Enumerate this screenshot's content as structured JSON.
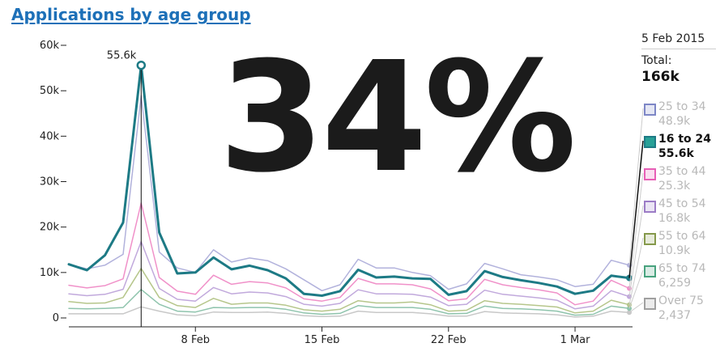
{
  "title": "Applications by age group",
  "big_stat": "34%",
  "panel": {
    "date": "5 Feb 2015",
    "total_label": "Total:",
    "total_value": "166k"
  },
  "legend": [
    {
      "name": "25 to 34",
      "value": "48.9k",
      "color": "#7d86c6",
      "active": false
    },
    {
      "name": "16 to 24",
      "value": "55.6k",
      "color": "#28a197",
      "active": true
    },
    {
      "name": "35 to 44",
      "value": "25.3k",
      "color": "#e75fb6",
      "active": false
    },
    {
      "name": "45 to 54",
      "value": "16.8k",
      "color": "#9c7cc6",
      "active": false
    },
    {
      "name": "55 to 64",
      "value": "10.9k",
      "color": "#85994b",
      "active": false
    },
    {
      "name": "65 to 74",
      "value": "6,259",
      "color": "#48a27e",
      "active": false
    },
    {
      "name": "Over 75",
      "value": "2,437",
      "color": "#a0a0a0",
      "active": false
    }
  ],
  "chart_data": {
    "type": "line",
    "x_start": "2015-02-01",
    "x_end": "2015-03-04",
    "x": [
      "1 Feb",
      "2 Feb",
      "3 Feb",
      "4 Feb",
      "5 Feb",
      "6 Feb",
      "7 Feb",
      "8 Feb",
      "9 Feb",
      "10 Feb",
      "11 Feb",
      "12 Feb",
      "13 Feb",
      "14 Feb",
      "15 Feb",
      "16 Feb",
      "17 Feb",
      "18 Feb",
      "19 Feb",
      "20 Feb",
      "21 Feb",
      "22 Feb",
      "23 Feb",
      "24 Feb",
      "25 Feb",
      "26 Feb",
      "27 Feb",
      "28 Feb",
      "1 Mar",
      "2 Mar",
      "3 Mar",
      "4 Mar"
    ],
    "xticks": [
      {
        "label": "8 Feb",
        "index": 7
      },
      {
        "label": "15 Feb",
        "index": 14
      },
      {
        "label": "22 Feb",
        "index": 21
      },
      {
        "label": "1 Mar",
        "index": 28
      }
    ],
    "ylim": [
      0,
      60000
    ],
    "yticks": [
      {
        "value": 0,
        "label": "0"
      },
      {
        "value": 10000,
        "label": "10k"
      },
      {
        "value": 20000,
        "label": "20k"
      },
      {
        "value": 30000,
        "label": "30k"
      },
      {
        "value": 40000,
        "label": "40k"
      },
      {
        "value": 50000,
        "label": "50k"
      },
      {
        "value": 60000,
        "label": "60k"
      }
    ],
    "highlight": {
      "index": 4,
      "label": "55.6k"
    },
    "series": [
      {
        "name": "Over 75",
        "color": "#c8c8c8",
        "width": 1.5,
        "values": [
          900,
          900,
          900,
          900,
          2437,
          1500,
          700,
          500,
          1300,
          1200,
          1200,
          1300,
          1000,
          500,
          300,
          400,
          1500,
          1200,
          1200,
          1200,
          900,
          400,
          400,
          1400,
          1100,
          1000,
          900,
          700,
          200,
          400,
          1500,
          1200
        ]
      },
      {
        "name": "65 to 74",
        "color": "#8fc4ad",
        "width": 1.5,
        "values": [
          2100,
          2000,
          2100,
          2300,
          6259,
          3000,
          1500,
          1300,
          2300,
          2200,
          2300,
          2300,
          1900,
          1100,
          800,
          1000,
          2700,
          2300,
          2300,
          2300,
          1900,
          900,
          1000,
          2600,
          2100,
          2000,
          1800,
          1500,
          600,
          800,
          2600,
          2100
        ]
      },
      {
        "name": "55 to 64",
        "color": "#b6c68b",
        "width": 1.5,
        "values": [
          3600,
          3200,
          3300,
          4500,
          10900,
          4500,
          2700,
          2300,
          4300,
          3000,
          3300,
          3300,
          2800,
          1800,
          1500,
          1900,
          3800,
          3300,
          3300,
          3500,
          2900,
          1500,
          1700,
          3800,
          3200,
          3000,
          2700,
          2400,
          1100,
          1500,
          3900,
          2900
        ]
      },
      {
        "name": "45 to 54",
        "color": "#c1a9dc",
        "width": 1.5,
        "values": [
          5300,
          4900,
          5200,
          6300,
          16800,
          6500,
          4100,
          3700,
          6700,
          5300,
          5700,
          5500,
          4700,
          3000,
          2600,
          3200,
          6200,
          5300,
          5300,
          5200,
          4600,
          2700,
          3000,
          6100,
          5200,
          4800,
          4400,
          3900,
          2000,
          2600,
          6000,
          4700
        ]
      },
      {
        "name": "35 to 44",
        "color": "#f091c9",
        "width": 1.5,
        "values": [
          7200,
          6600,
          7100,
          8600,
          25300,
          8900,
          5900,
          5200,
          9400,
          7400,
          8000,
          7700,
          6600,
          4200,
          3700,
          4500,
          8700,
          7500,
          7500,
          7300,
          6400,
          3800,
          4200,
          8500,
          7300,
          6700,
          6200,
          5500,
          2900,
          3700,
          8300,
          6500
        ]
      },
      {
        "name": "25 to 34",
        "color": "#b2b2dc",
        "width": 1.5,
        "values": [
          11800,
          10800,
          11600,
          14000,
          48900,
          14500,
          11000,
          10000,
          15000,
          12300,
          13200,
          12600,
          10800,
          8400,
          6000,
          7300,
          12900,
          11000,
          11000,
          10000,
          9300,
          6300,
          7500,
          12000,
          10800,
          9500,
          9000,
          8400,
          6900,
          7400,
          12700,
          11600
        ]
      },
      {
        "name": "16 to 24",
        "color": "#1d7a85",
        "width": 3,
        "values": [
          11800,
          10500,
          13800,
          21000,
          55600,
          18800,
          9800,
          10000,
          13300,
          10700,
          11500,
          10500,
          8700,
          5300,
          4900,
          5900,
          10600,
          8900,
          9100,
          8700,
          8600,
          5100,
          5900,
          10300,
          9000,
          8300,
          7700,
          6900,
          5300,
          6000,
          9300,
          8800
        ]
      }
    ]
  }
}
